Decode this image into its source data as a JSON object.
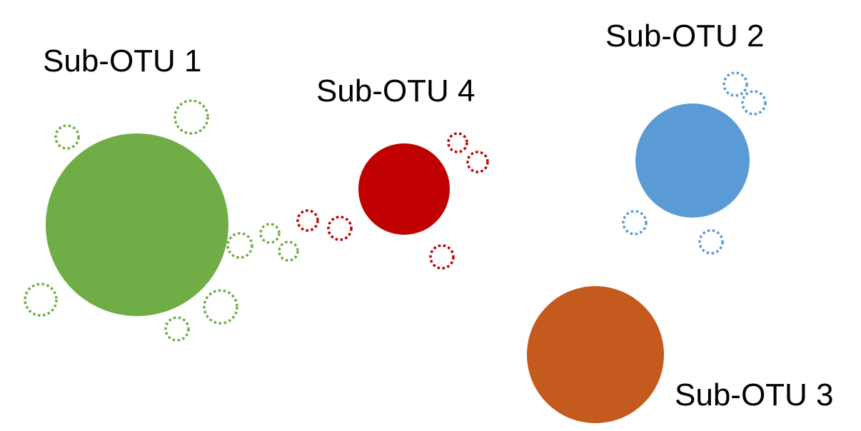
{
  "colors": {
    "sub_otu_1": "#70AD47",
    "sub_otu_2": "#5B9BD5",
    "sub_otu_3": "#C55A1E",
    "sub_otu_4": "#C00000"
  },
  "labels": {
    "sub_otu_1": "Sub-OTU 1",
    "sub_otu_2": "Sub-OTU 2",
    "sub_otu_3": "Sub-OTU 3",
    "sub_otu_4": "Sub-OTU 4"
  }
}
